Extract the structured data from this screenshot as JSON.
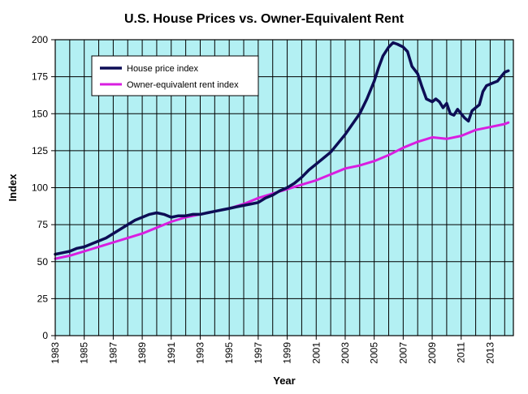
{
  "chart_data": {
    "type": "line",
    "title": "U.S. House Prices vs. Owner-Equivalent Rent",
    "xlabel": "Year",
    "ylabel": "Index",
    "xlim": [
      1983,
      2014.6
    ],
    "ylim": [
      0,
      200
    ],
    "yticks": [
      0,
      25,
      50,
      75,
      100,
      125,
      150,
      175,
      200
    ],
    "xticks": [
      1983,
      1985,
      1987,
      1989,
      1991,
      1993,
      1995,
      1997,
      1999,
      2001,
      2003,
      2005,
      2007,
      2009,
      2011,
      2013
    ],
    "grid": true,
    "legend_position": "top-left",
    "colors": {
      "plot_background": "#b3f0f3",
      "grid": "#000000",
      "house": "#0d0d55",
      "rent": "#d91ee0"
    },
    "series": [
      {
        "name": "House price index",
        "key": "house",
        "x": [
          1983,
          1983.5,
          1984,
          1984.5,
          1985,
          1985.5,
          1986,
          1986.5,
          1987,
          1987.5,
          1988,
          1988.5,
          1989,
          1989.5,
          1990,
          1990.5,
          1991,
          1991.5,
          1992,
          1992.5,
          1993,
          1993.5,
          1994,
          1994.5,
          1995,
          1995.5,
          1996,
          1996.5,
          1997,
          1997.5,
          1998,
          1998.5,
          1999,
          1999.5,
          2000,
          2000.5,
          2001,
          2001.5,
          2002,
          2002.5,
          2003,
          2003.5,
          2004,
          2004.5,
          2005,
          2005.3,
          2005.6,
          2006,
          2006.3,
          2006.6,
          2007,
          2007.3,
          2007.6,
          2008,
          2008.3,
          2008.6,
          2009,
          2009.25,
          2009.5,
          2009.75,
          2010,
          2010.25,
          2010.5,
          2010.75,
          2011,
          2011.25,
          2011.5,
          2011.75,
          2012,
          2012.25,
          2012.5,
          2012.75,
          2013,
          2013.25,
          2013.5,
          2013.75,
          2014,
          2014.25
        ],
        "values": [
          55,
          56,
          57,
          59,
          60,
          62,
          64,
          66,
          69,
          72,
          75,
          78,
          80,
          82,
          83,
          82,
          80,
          81,
          81,
          82,
          82,
          83,
          84,
          85,
          86,
          87,
          88,
          89,
          90,
          93,
          95,
          98,
          100,
          103,
          107,
          112,
          116,
          120,
          124,
          130,
          136,
          143,
          150,
          160,
          172,
          181,
          189,
          195,
          198,
          197,
          195,
          192,
          182,
          177,
          168,
          160,
          158,
          160,
          158,
          154,
          157,
          150,
          149,
          153,
          150,
          147,
          145,
          152,
          154,
          156,
          165,
          169,
          170,
          171,
          172,
          175,
          178,
          179
        ]
      },
      {
        "name": "Owner-equivalent rent index",
        "key": "rent",
        "x": [
          1983,
          1984,
          1985,
          1986,
          1987,
          1988,
          1989,
          1990,
          1991,
          1992,
          1993,
          1994,
          1995,
          1996,
          1997,
          1998,
          1999,
          2000,
          2001,
          2002,
          2003,
          2004,
          2005,
          2006,
          2007,
          2008,
          2009,
          2010,
          2011,
          2012,
          2013,
          2014,
          2014.25
        ],
        "values": [
          52,
          54,
          57,
          60,
          63,
          66,
          69,
          73,
          77,
          80,
          82,
          84,
          86,
          89,
          93,
          96,
          99,
          102,
          105,
          109,
          113,
          115,
          118,
          122,
          127,
          131,
          134,
          133,
          135,
          139,
          141,
          143,
          144
        ]
      }
    ]
  }
}
